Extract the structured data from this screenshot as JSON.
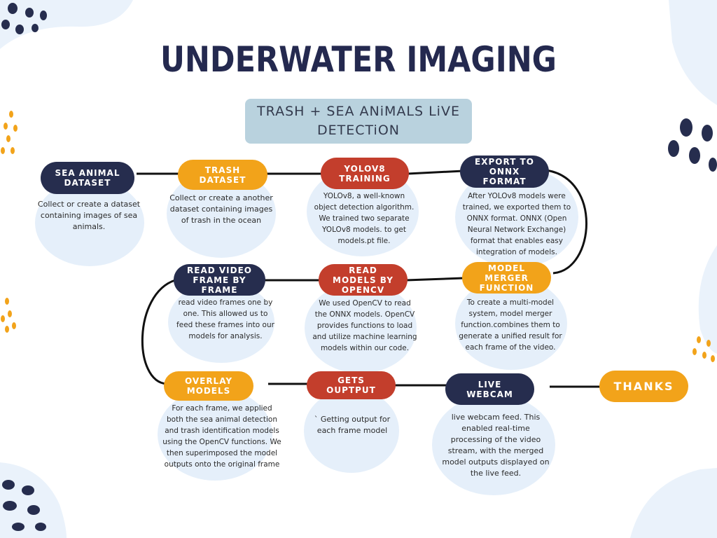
{
  "title": "UNDERWATER IMAGING",
  "subtitle": {
    "line1": "TRASH + SEA ANiMALS LiVE",
    "line2": "DETECTiON"
  },
  "steps": [
    {
      "id": "sea-animal-dataset",
      "label": "SEA ANIMAL\nDATASET",
      "color": "navy",
      "description": "Collect or create a dataset containing images of sea animals."
    },
    {
      "id": "trash-dataset",
      "label": "TRASH\nDATASET",
      "color": "orange",
      "description": "Collect or create a another dataset containing images of trash in the ocean"
    },
    {
      "id": "yolov8-training",
      "label": "YOLOV8\nTRAINING",
      "color": "red",
      "description": "YOLOv8, a well-known object detection algorithm. We trained two separate YOLOv8 models. to get models.pt file."
    },
    {
      "id": "export-to-onnx",
      "label": "EXPORT TO\nONNX\nFORMAT",
      "color": "navy",
      "description": "After YOLOv8 models were trained, we exported them to ONNX format. ONNX (Open Neural Network Exchange) format that enables easy integration of models."
    },
    {
      "id": "model-merger",
      "label": "MODEL\nMERGER\nFUNCTION",
      "color": "orange",
      "description": "To create a multi-model system, model merger function.combines them to generate a unified result for each frame of the video."
    },
    {
      "id": "read-models-opencv",
      "label": "READ\nMODELS BY\nOPENCV",
      "color": "red",
      "description": "We used OpenCV to read the ONNX models. OpenCV provides functions to load and utilize machine learning models within our code."
    },
    {
      "id": "read-video-frame",
      "label": "READ VIDEO\nFRAME BY\nFRAME",
      "color": "navy",
      "description": "read video frames one by one. This allowed us to feed these frames into our models for analysis."
    },
    {
      "id": "overlay-models",
      "label": "OVERLAY\nMODELS",
      "color": "orange",
      "description": "For each frame, we applied both the sea animal detection and trash identification models using the OpenCV functions. We then superimposed the model outputs onto the original frame"
    },
    {
      "id": "gets-output",
      "label": "GETS\nOUPTPUT",
      "color": "red",
      "description": "` Getting output for each frame model"
    },
    {
      "id": "live-webcam",
      "label": "LIVE\nWEBCAM",
      "color": "navy",
      "description": "live webcam feed. This enabled real-time processing of the video stream, with the merged model outputs displayed on the live feed."
    }
  ],
  "thanks": "THANKS"
}
